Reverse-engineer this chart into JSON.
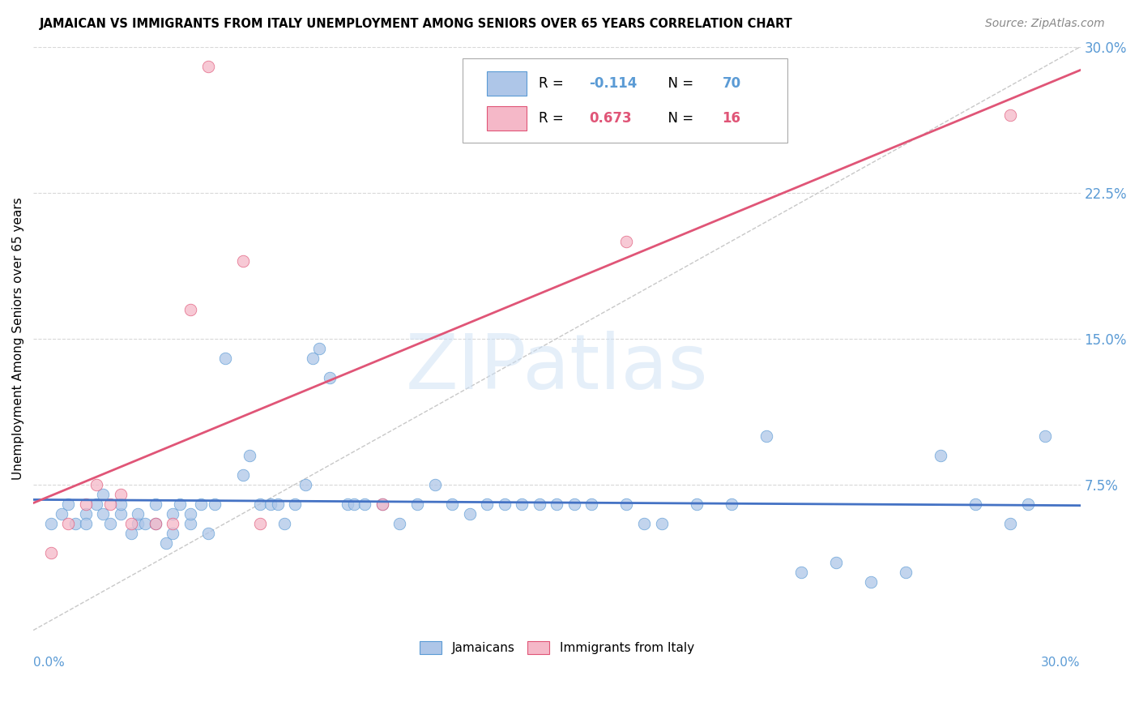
{
  "title": "JAMAICAN VS IMMIGRANTS FROM ITALY UNEMPLOYMENT AMONG SENIORS OVER 65 YEARS CORRELATION CHART",
  "source": "Source: ZipAtlas.com",
  "ylabel": "Unemployment Among Seniors over 65 years",
  "xlim": [
    0.0,
    0.3
  ],
  "ylim": [
    0.0,
    0.3
  ],
  "yticks": [
    0.075,
    0.15,
    0.225,
    0.3
  ],
  "ytick_labels": [
    "7.5%",
    "15.0%",
    "22.5%",
    "30.0%"
  ],
  "color_jamaican_fill": "#aec6e8",
  "color_jamaican_edge": "#5b9bd5",
  "color_italy_fill": "#f5b8c8",
  "color_italy_edge": "#e05577",
  "color_line_jamaican": "#4472c4",
  "color_line_italy": "#e05577",
  "color_diag": "#c8c8c8",
  "watermark_text": "ZIPatlas",
  "jamaican_x": [
    0.005,
    0.008,
    0.01,
    0.012,
    0.015,
    0.015,
    0.018,
    0.02,
    0.02,
    0.022,
    0.025,
    0.025,
    0.028,
    0.03,
    0.03,
    0.032,
    0.035,
    0.035,
    0.038,
    0.04,
    0.04,
    0.042,
    0.045,
    0.045,
    0.048,
    0.05,
    0.052,
    0.055,
    0.06,
    0.062,
    0.065,
    0.068,
    0.07,
    0.072,
    0.075,
    0.078,
    0.08,
    0.082,
    0.085,
    0.09,
    0.092,
    0.095,
    0.1,
    0.105,
    0.11,
    0.115,
    0.12,
    0.125,
    0.13,
    0.135,
    0.14,
    0.145,
    0.15,
    0.155,
    0.16,
    0.17,
    0.175,
    0.18,
    0.19,
    0.2,
    0.21,
    0.22,
    0.23,
    0.24,
    0.25,
    0.26,
    0.27,
    0.28,
    0.285,
    0.29
  ],
  "jamaican_y": [
    0.055,
    0.06,
    0.065,
    0.055,
    0.06,
    0.055,
    0.065,
    0.06,
    0.07,
    0.055,
    0.06,
    0.065,
    0.05,
    0.055,
    0.06,
    0.055,
    0.055,
    0.065,
    0.045,
    0.05,
    0.06,
    0.065,
    0.055,
    0.06,
    0.065,
    0.05,
    0.065,
    0.14,
    0.08,
    0.09,
    0.065,
    0.065,
    0.065,
    0.055,
    0.065,
    0.075,
    0.14,
    0.145,
    0.13,
    0.065,
    0.065,
    0.065,
    0.065,
    0.055,
    0.065,
    0.075,
    0.065,
    0.06,
    0.065,
    0.065,
    0.065,
    0.065,
    0.065,
    0.065,
    0.065,
    0.065,
    0.055,
    0.055,
    0.065,
    0.065,
    0.1,
    0.03,
    0.035,
    0.025,
    0.03,
    0.09,
    0.065,
    0.055,
    0.065,
    0.1
  ],
  "italy_x": [
    0.005,
    0.01,
    0.015,
    0.018,
    0.022,
    0.025,
    0.028,
    0.035,
    0.04,
    0.045,
    0.05,
    0.06,
    0.065,
    0.1,
    0.17,
    0.28
  ],
  "italy_y": [
    0.04,
    0.055,
    0.065,
    0.075,
    0.065,
    0.07,
    0.055,
    0.055,
    0.055,
    0.165,
    0.29,
    0.19,
    0.055,
    0.065,
    0.2,
    0.265
  ]
}
